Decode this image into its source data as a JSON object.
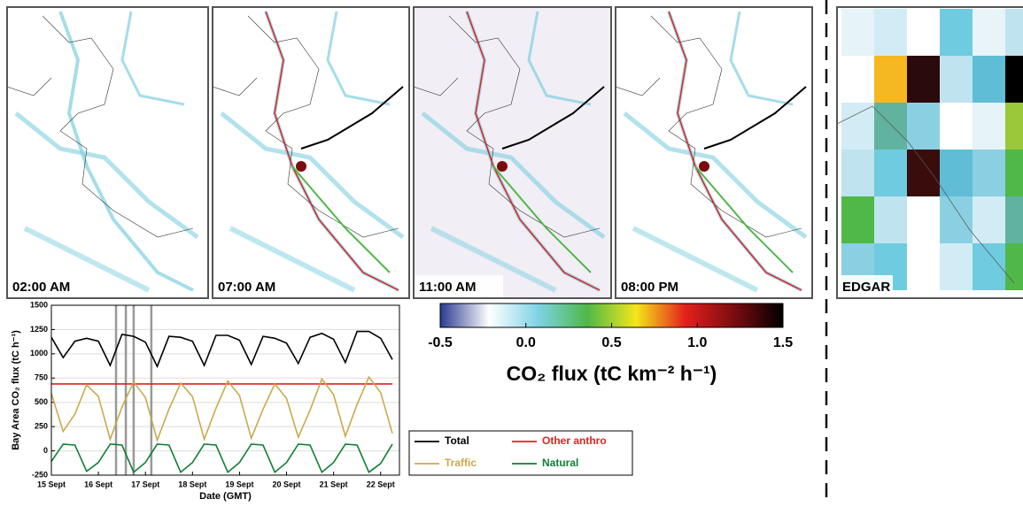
{
  "map_panels": [
    "02:00 AM",
    "07:00 AM",
    "11:00 AM",
    "08:00 PM",
    "EDGAR"
  ],
  "chart_data": [
    {
      "type": "line",
      "y_label": "Bay Area CO₂ flux (tC h⁻¹)",
      "x_label": "Date (GMT)",
      "x": [
        15,
        15.25,
        15.5,
        15.75,
        16,
        16.25,
        16.5,
        16.75,
        17,
        17.25,
        17.5,
        17.75,
        18,
        18.25,
        18.5,
        18.75,
        19,
        19.25,
        19.5,
        19.75,
        20,
        20.25,
        20.5,
        20.75,
        21,
        21.25,
        21.5,
        21.75,
        22,
        22.25
      ],
      "xlim": [
        15,
        22.4
      ],
      "xticks": [
        {
          "value": 15,
          "label": "15 Sept"
        },
        {
          "value": 16,
          "label": "16 Sept"
        },
        {
          "value": 17,
          "label": "17 Sept"
        },
        {
          "value": 18,
          "label": "18 Sept"
        },
        {
          "value": 19,
          "label": "19 Sept"
        },
        {
          "value": 20,
          "label": "20 Sept"
        },
        {
          "value": 21,
          "label": "21 Sept"
        },
        {
          "value": 22,
          "label": "22 Sept"
        }
      ],
      "ylim": [
        -250,
        1500
      ],
      "yticks": [
        -250,
        0,
        250,
        500,
        750,
        1000,
        1250,
        1500
      ],
      "grid": true,
      "snapshot_x": [
        16.375,
        16.583,
        16.75,
        17.125
      ],
      "series": [
        {
          "name": "Total",
          "color": "#000000",
          "values": [
            1170,
            960,
            1130,
            1160,
            1130,
            880,
            1200,
            1180,
            1120,
            870,
            1180,
            1170,
            1130,
            880,
            1190,
            1190,
            1140,
            890,
            1180,
            1160,
            1110,
            900,
            1170,
            1210,
            1150,
            910,
            1230,
            1230,
            1160,
            940
          ]
        },
        {
          "name": "Other anthro",
          "color": "#e3211c",
          "values": [
            690,
            690,
            690,
            690,
            690,
            690,
            690,
            690,
            690,
            690,
            690,
            690,
            690,
            690,
            690,
            690,
            690,
            690,
            690,
            690,
            690,
            690,
            690,
            690,
            690,
            690,
            690,
            690,
            690,
            690
          ]
        },
        {
          "name": "Traffic",
          "color": "#c9a94d",
          "values": [
            590,
            200,
            380,
            680,
            560,
            120,
            450,
            710,
            550,
            110,
            430,
            700,
            560,
            120,
            440,
            720,
            570,
            130,
            430,
            690,
            540,
            140,
            420,
            740,
            580,
            150,
            480,
            760,
            600,
            180
          ]
        },
        {
          "name": "Natural",
          "color": "#0f7f35",
          "values": [
            -110,
            70,
            60,
            -210,
            -120,
            70,
            60,
            -220,
            -120,
            70,
            60,
            -220,
            -120,
            70,
            60,
            -220,
            -120,
            70,
            60,
            -220,
            -120,
            70,
            60,
            -220,
            -120,
            70,
            60,
            -220,
            -130,
            70
          ]
        }
      ]
    },
    {
      "type": "colorbar",
      "label": "CO₂ flux (tC km⁻² h⁻¹)",
      "xlim": [
        -0.5,
        1.5
      ],
      "xticks": [
        -0.5,
        {
          "value": 0,
          "label": "0.0"
        },
        0.5,
        {
          "value": 1,
          "label": "1.0"
        },
        1.5
      ],
      "colors": [
        "#2a3b90",
        "#ffffff",
        "#7fd3e6",
        "#4fb848",
        "#f5e61a",
        "#e3211c",
        "#7a0c10",
        "#000000"
      ]
    }
  ]
}
